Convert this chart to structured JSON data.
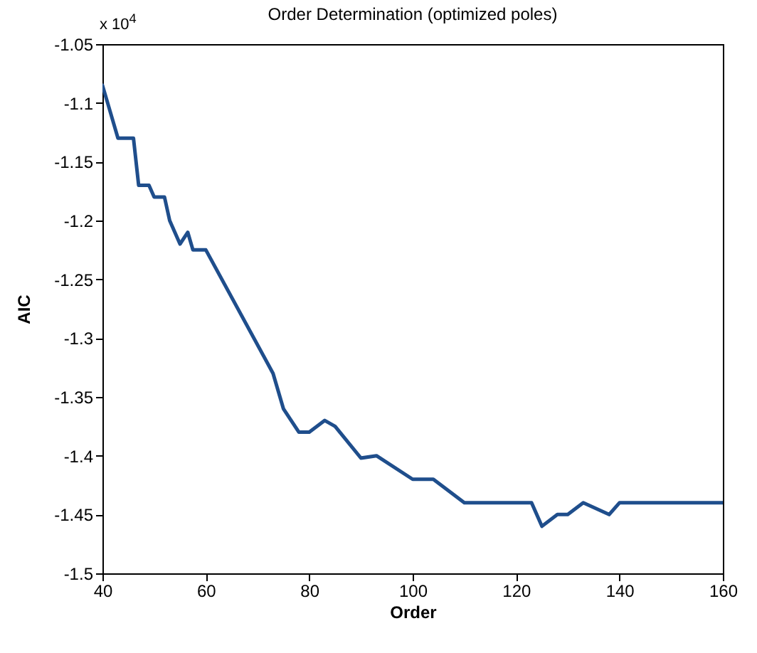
{
  "chart_data": {
    "type": "line",
    "title": "Order Determination (optimized poles)",
    "xlabel": "Order",
    "ylabel": "AIC",
    "annotations": [
      "x 10$^{4}$"
    ],
    "x": [
      40,
      41,
      43,
      46,
      47,
      49,
      50,
      52,
      53,
      55,
      56.5,
      57.5,
      60,
      73,
      75,
      78,
      80,
      83,
      85,
      90,
      93,
      100,
      104,
      107,
      110,
      123,
      125,
      128,
      130,
      133,
      138,
      140,
      160
    ],
    "series": [
      {
        "color": "#1f4e8c",
        "values": [
          -1.085,
          -1.1,
          -1.13,
          -1.13,
          -1.17,
          -1.17,
          -1.18,
          -1.18,
          -1.2,
          -1.22,
          -1.21,
          -1.225,
          -1.225,
          -1.33,
          -1.36,
          -1.38,
          -1.38,
          -1.37,
          -1.375,
          -1.402,
          -1.4,
          -1.42,
          -1.42,
          -1.43,
          -1.44,
          -1.44,
          -1.46,
          -1.45,
          -1.45,
          -1.44,
          -1.45,
          -1.44,
          -1.44
        ]
      }
    ],
    "xlim": [
      40,
      160
    ],
    "xticks": [
      40,
      60,
      80,
      100,
      120,
      140,
      160
    ],
    "ylim": [
      -1.5,
      -1.05
    ],
    "yticks": [
      -1.5,
      -1.45,
      -1.4,
      -1.35,
      -1.3,
      -1.25,
      -1.2,
      -1.15,
      -1.1,
      -1.05
    ],
    "grid": false,
    "line_style": "solid",
    "marker": "none"
  }
}
